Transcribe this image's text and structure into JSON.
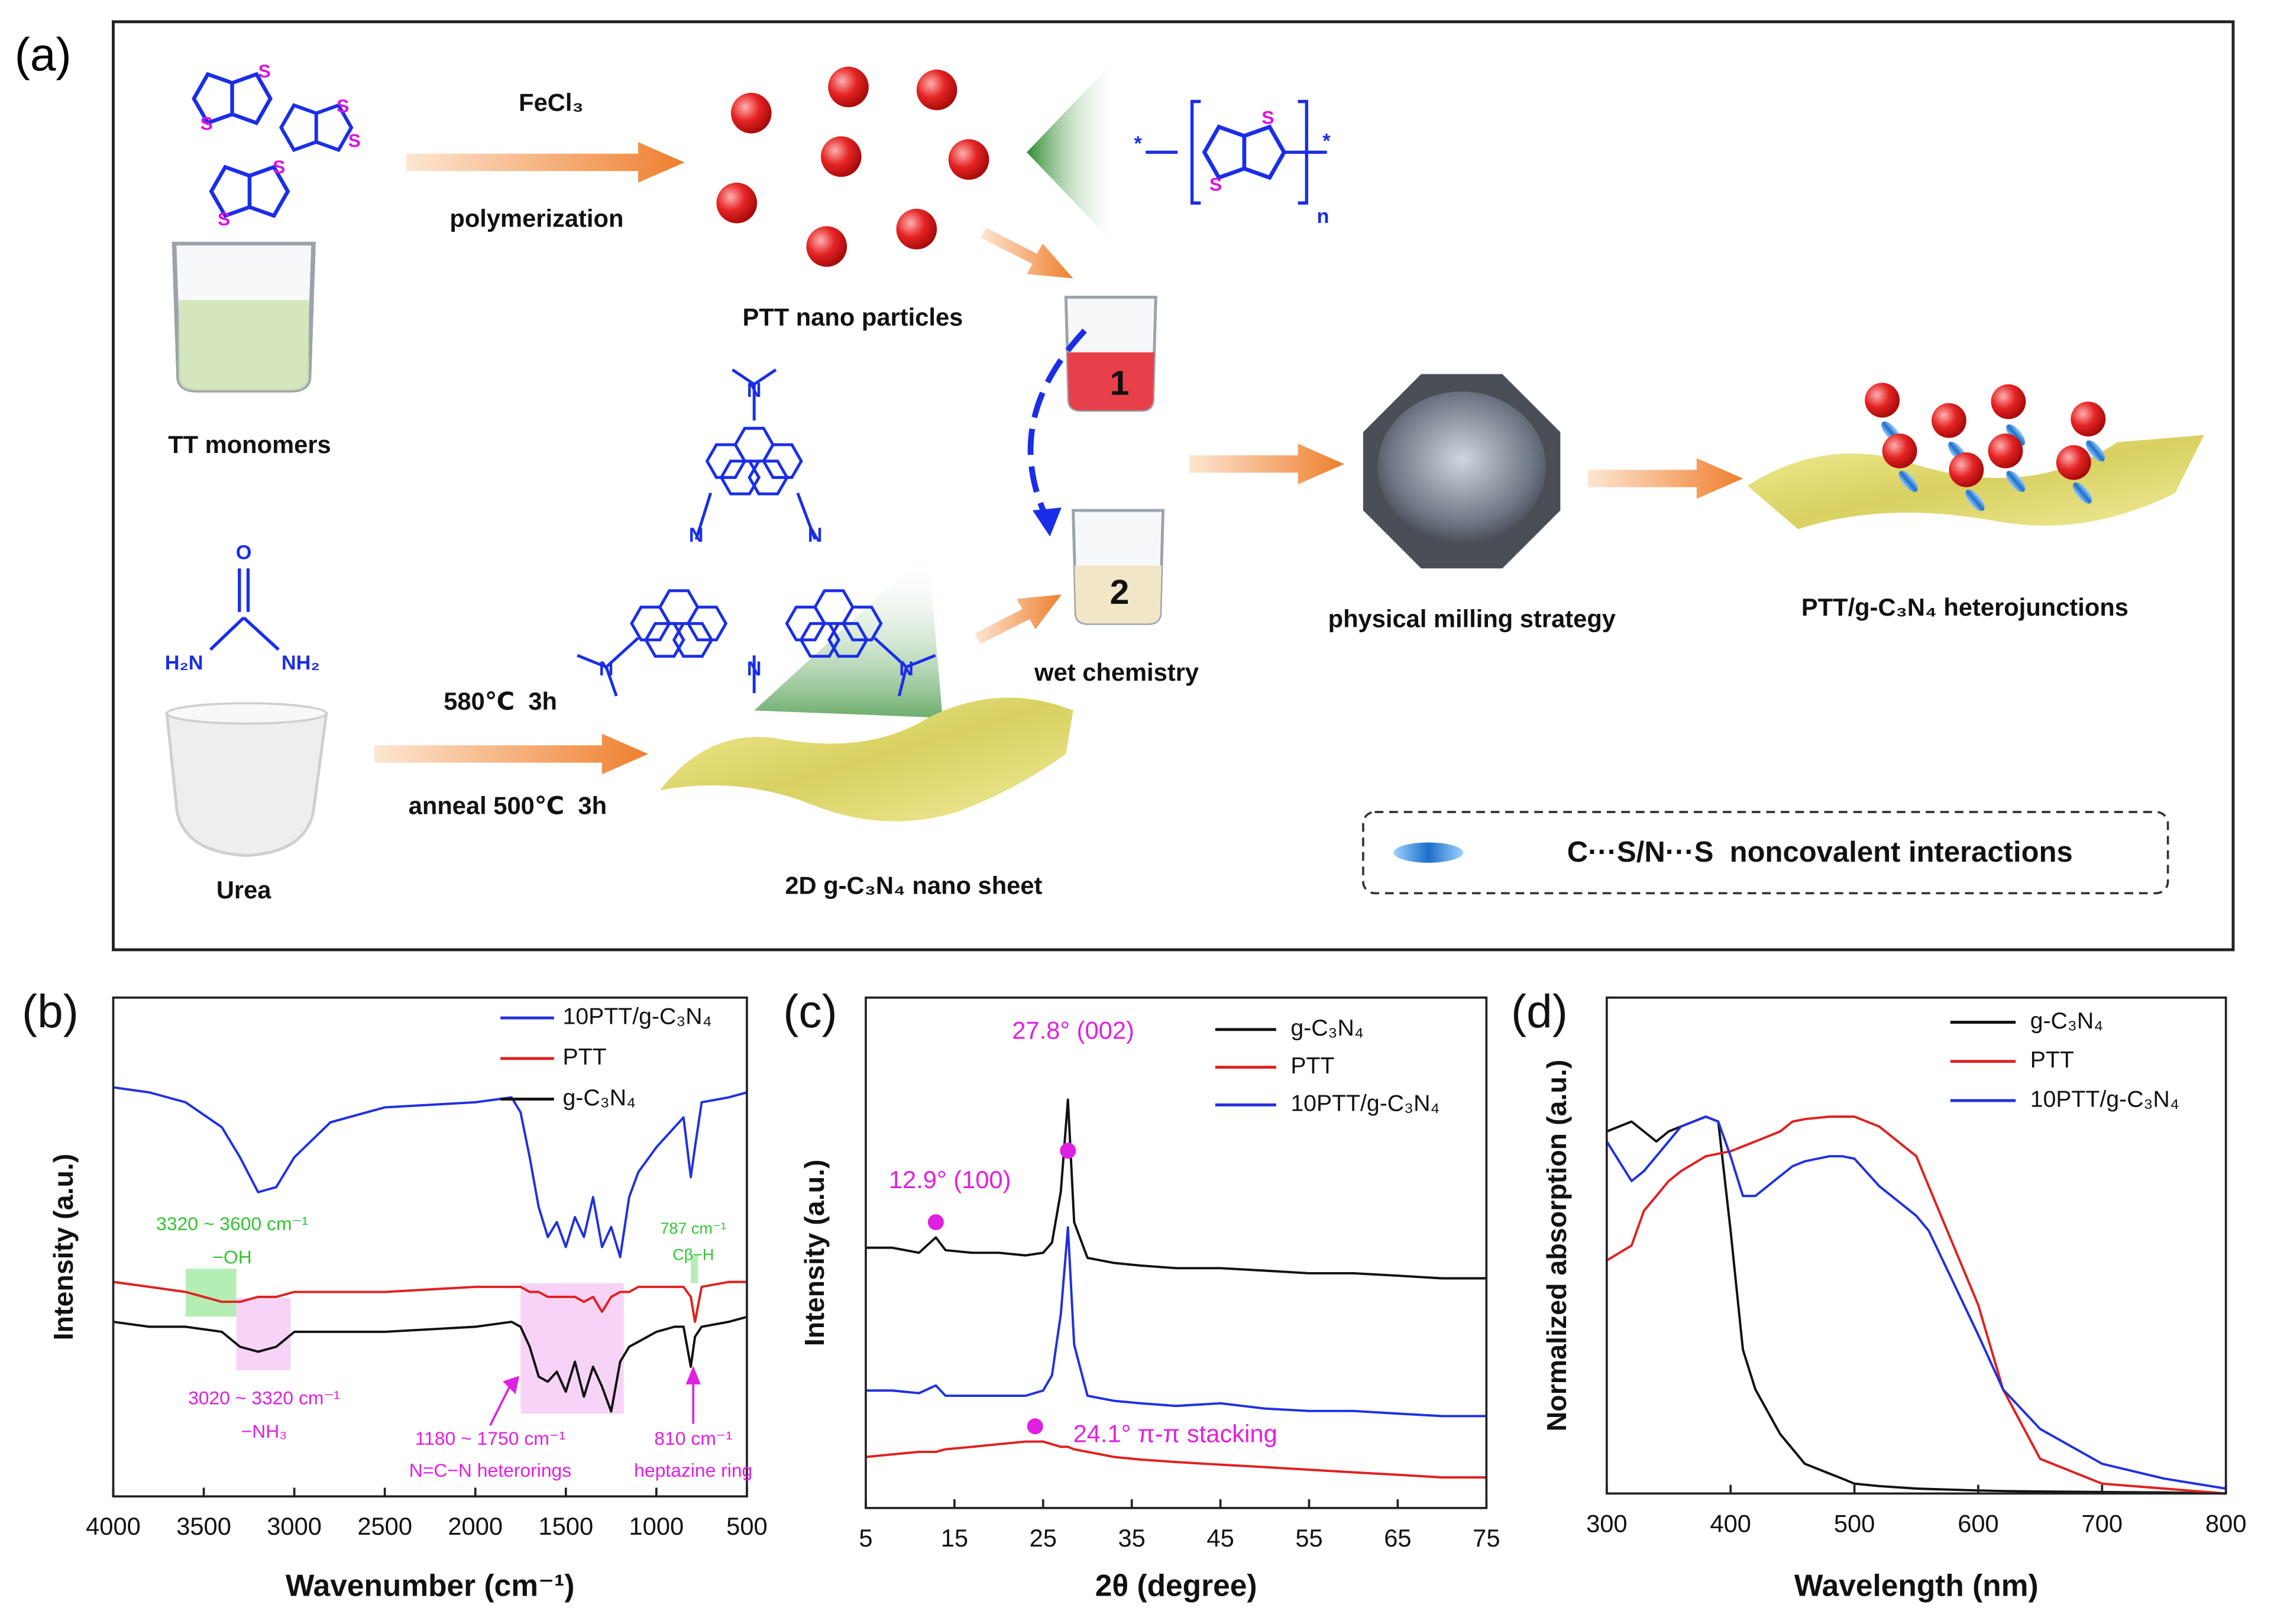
{
  "schematic": {
    "panel_label": "(a)",
    "reagent": "FeCl₃",
    "step_polymerization": "polymerization",
    "ptt_particles": "PTT nano particles",
    "tt_monomers": "TT monomers",
    "beaker_1": "1",
    "beaker_2": "2",
    "wet_chemistry": "wet chemistry",
    "milling": "physical milling strategy",
    "product": "PTT/g-C₃N₄ heterojunctions",
    "urea": "Urea",
    "condition_1": "580℃  3h",
    "condition_2": "anneal 500℃  3h",
    "nanosheet": "2D g-C₃N₄ nano sheet",
    "legend": "C···S/N···S  noncovalent interactions",
    "atom_s": "S",
    "atom_n": "N",
    "atom_o": "O",
    "group_h2n": "H₂N",
    "group_nh2": "NH₂",
    "repeat_n": "n",
    "end_group": "*"
  },
  "chart_data": [
    {
      "type": "line",
      "panel_label": "(b)",
      "xlabel": "Wavenumber (cm⁻¹)",
      "ylabel": "Intensity (a.u.)",
      "xlim": [
        4000,
        500
      ],
      "xticks": [
        4000,
        3500,
        3000,
        2500,
        2000,
        1500,
        1000,
        500
      ],
      "ylim": [
        0,
        100
      ],
      "legend": "upper right",
      "x": [
        4000,
        3800,
        3600,
        3400,
        3300,
        3200,
        3100,
        3000,
        2800,
        2500,
        2000,
        1800,
        1750,
        1700,
        1650,
        1600,
        1550,
        1500,
        1450,
        1400,
        1350,
        1300,
        1250,
        1200,
        1150,
        1100,
        1000,
        900,
        850,
        810,
        787,
        750,
        600,
        500
      ],
      "series": [
        {
          "name": "10PTT/g-C₃N₄",
          "color": "#2030e0",
          "values": [
            82,
            81,
            79,
            74,
            68,
            61,
            62,
            68,
            75,
            78,
            79,
            80,
            77,
            68,
            58,
            52,
            55,
            50,
            56,
            52,
            60,
            50,
            54,
            48,
            60,
            65,
            70,
            74,
            76,
            64,
            70,
            79,
            80,
            81
          ]
        },
        {
          "name": "PTT",
          "color": "#e02020",
          "values": [
            43,
            42,
            41,
            39,
            39,
            40,
            40,
            41,
            41,
            41,
            42,
            42,
            42,
            41,
            41,
            40,
            40,
            40,
            40,
            39,
            40,
            37,
            40,
            41,
            41,
            42,
            42,
            42,
            42,
            40,
            35,
            42,
            43,
            43
          ]
        },
        {
          "name": "g-C₃N₄",
          "color": "#111111",
          "values": [
            35,
            34,
            34,
            33,
            30,
            29,
            30,
            33,
            33,
            33,
            34,
            35,
            34,
            30,
            24,
            23,
            25,
            21,
            27,
            20,
            26,
            22,
            17,
            27,
            30,
            31,
            33,
            34,
            34,
            26,
            32,
            34,
            35,
            36
          ]
        }
      ],
      "regions": [
        {
          "from": 3600,
          "to": 3320,
          "color": "#9be89b"
        },
        {
          "from": 3320,
          "to": 3020,
          "color": "#f4c6f4"
        },
        {
          "from": 1750,
          "to": 1180,
          "color": "#f4c6f4"
        },
        {
          "from": 810,
          "to": 770,
          "color": "#9be89b"
        }
      ],
      "annotations": [
        {
          "text": "3320 ~ 3600 cm⁻¹",
          "color": "#33c433"
        },
        {
          "text": "−OH",
          "color": "#33c433"
        },
        {
          "text": "787 cm⁻¹",
          "color": "#33c433"
        },
        {
          "text": "Cβ−H",
          "color": "#33c433"
        },
        {
          "text": "3020 ~ 3320 cm⁻¹",
          "color": "#e020e0"
        },
        {
          "text": "−NH₃",
          "color": "#e020e0"
        },
        {
          "text": "1180 ~ 1750 cm⁻¹",
          "color": "#e020e0"
        },
        {
          "text": "N=C−N heterorings",
          "color": "#e020e0"
        },
        {
          "text": "810 cm⁻¹",
          "color": "#e020e0"
        },
        {
          "text": "heptazine ring",
          "color": "#e020e0"
        }
      ]
    },
    {
      "type": "line",
      "panel_label": "(c)",
      "xlabel": "2θ (degree)",
      "ylabel": "Intensity (a.u.)",
      "xlim": [
        5,
        75
      ],
      "xticks": [
        5,
        15,
        25,
        35,
        45,
        55,
        65,
        75
      ],
      "ylim": [
        0,
        100
      ],
      "legend": "upper right",
      "x": [
        5,
        8,
        11,
        12.9,
        14,
        17,
        20,
        23,
        25,
        26,
        27,
        27.8,
        28.5,
        30,
        33,
        36,
        40,
        45,
        50,
        55,
        60,
        65,
        70,
        75
      ],
      "series": [
        {
          "name": "g-C₃N₄",
          "color": "#111111",
          "values": [
            51,
            51,
            50,
            53,
            50.5,
            50,
            50,
            49.5,
            50,
            52,
            62,
            80,
            56,
            49,
            48,
            47.5,
            47,
            47,
            46.5,
            46,
            46,
            45.5,
            45,
            45
          ]
        },
        {
          "name": "PTT",
          "color": "#e02020",
          "values": [
            10,
            10.5,
            11,
            11,
            11.5,
            12,
            12.5,
            13,
            13,
            12.5,
            12,
            12,
            11.5,
            11,
            10,
            9.5,
            9,
            8.5,
            8,
            7.5,
            7,
            6.5,
            6,
            6
          ]
        },
        {
          "name": "10PTT/g-C₃N₄",
          "color": "#2030e0",
          "values": [
            23,
            23,
            22.5,
            24,
            22,
            22,
            22,
            22,
            23,
            26,
            38,
            55,
            32,
            22,
            21,
            20.5,
            20,
            20.5,
            19.5,
            19,
            19,
            18.5,
            18,
            18
          ]
        }
      ],
      "annotations": [
        {
          "text": "27.8° (002)",
          "color": "#e020e0",
          "x": 27.8,
          "y": 70
        },
        {
          "text": "12.9° (100)",
          "color": "#e020e0",
          "x": 12.9,
          "y": 56
        },
        {
          "text": "24.1° π-π stacking",
          "color": "#e020e0",
          "x": 24.1,
          "y": 16
        }
      ]
    },
    {
      "type": "line",
      "panel_label": "(d)",
      "xlabel": "Wavelength (nm)",
      "ylabel": "Normalized absorption (a.u.)",
      "xlim": [
        300,
        800
      ],
      "xticks": [
        300,
        400,
        500,
        600,
        700,
        800
      ],
      "ylim": [
        0,
        100
      ],
      "legend": "upper right",
      "x": [
        300,
        320,
        330,
        340,
        350,
        360,
        380,
        390,
        400,
        410,
        420,
        440,
        450,
        460,
        480,
        490,
        500,
        520,
        550,
        560,
        600,
        620,
        650,
        700,
        750,
        800
      ],
      "series": [
        {
          "name": "g-C₃N₄",
          "color": "#111111",
          "values": [
            73,
            75,
            73,
            71,
            73,
            74,
            76,
            75,
            53,
            29,
            21,
            12,
            9,
            6,
            4,
            3,
            2,
            1.5,
            1,
            0.9,
            0.6,
            0.5,
            0.4,
            0.3,
            0.2,
            0
          ]
        },
        {
          "name": "PTT",
          "color": "#e02020",
          "values": [
            47,
            50,
            57,
            60,
            63,
            65,
            68,
            68.5,
            69,
            70,
            71,
            73,
            75,
            75.5,
            76,
            76,
            76,
            74,
            68,
            62,
            38,
            21,
            7,
            2,
            1,
            0
          ]
        },
        {
          "name": "10PTT/g-C₃N₄",
          "color": "#2030e0",
          "values": [
            71,
            63,
            65,
            68,
            71,
            74,
            76,
            75,
            68,
            60,
            60,
            64,
            66,
            67,
            68,
            68,
            67.5,
            62,
            56,
            53,
            32,
            21,
            13,
            6,
            3,
            1
          ]
        }
      ]
    }
  ]
}
